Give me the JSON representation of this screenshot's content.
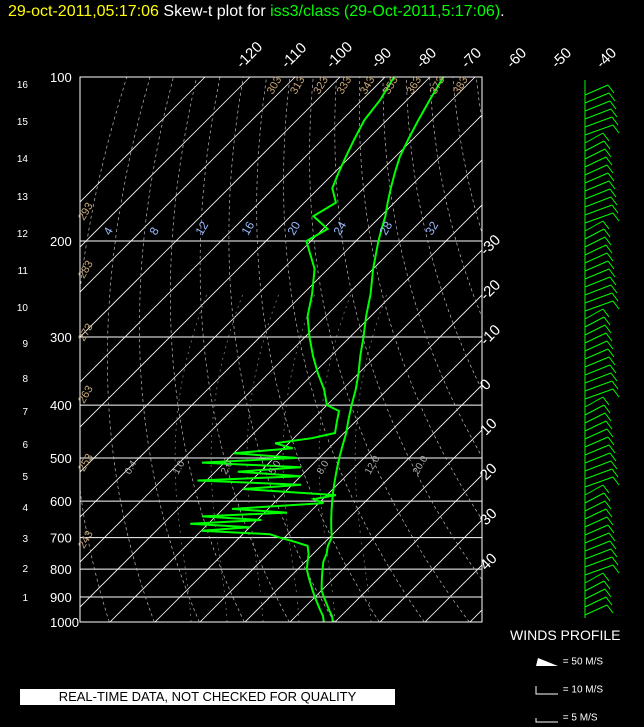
{
  "header": {
    "timestamp": "29-oct-2011,05:17:06",
    "plot_label": "Skew-t plot for",
    "station": "iss3/class",
    "station_time": "(29-Oct-2011,5:17:06)",
    "period": "."
  },
  "winds": {
    "label": "WINDS PROFILE",
    "legend": [
      "= 50 M/S",
      "= 10 M/S",
      "= 5 M/S"
    ]
  },
  "quality_note": "REAL-TIME DATA, NOT CHECKED FOR QUALITY",
  "colors": {
    "temperature": "#00ff00",
    "dewpoint": "#00ff00",
    "grid": "#ffffff",
    "mixing_ratio": "#9ab8ff",
    "dry_adiabat": "#c8a878",
    "background": "#000000"
  },
  "chart_data": {
    "type": "line",
    "subtype": "skew-t log-p",
    "y_axis": {
      "label": "pressure (hPa)",
      "scale": "log",
      "range": [
        1000,
        100
      ],
      "ticks": [
        100,
        200,
        300,
        400,
        500,
        600,
        700,
        800,
        900,
        1000
      ]
    },
    "height_axis": {
      "label": "height (km)",
      "ticks": [
        1,
        2,
        3,
        4,
        5,
        6,
        7,
        8,
        9,
        10,
        11,
        12,
        13,
        14,
        15,
        16
      ]
    },
    "temperature_labels": [
      "-120",
      "-110",
      "-100",
      "-90",
      "-80",
      "-70",
      "-60",
      "-50",
      "-40",
      "-30",
      "-20",
      "-10",
      "0",
      "10",
      "20",
      "30",
      "40"
    ],
    "isotherms_top": [
      -120,
      -110,
      -100,
      -90,
      -80,
      -70,
      -60,
      -50,
      -40
    ],
    "isotherms_right": [
      -30,
      -20,
      -10,
      0,
      10,
      20,
      30,
      40
    ],
    "dry_adiabat_labels": [
      "243",
      "253",
      "263",
      "273",
      "283",
      "293",
      "303",
      "313",
      "323",
      "333",
      "343",
      "353",
      "363",
      "373",
      "383",
      "393",
      "403",
      "413",
      "423",
      "433"
    ],
    "mixing_ratio_labels": [
      "4",
      "8",
      "12",
      "16",
      "20",
      "24",
      "28",
      "32"
    ],
    "small_mixing_labels": [
      "0.4",
      "1.0",
      "2.0",
      "5.0",
      "8.0",
      "12.0",
      "20.0"
    ],
    "series": [
      {
        "name": "temperature",
        "points": [
          [
            1000,
            19.5
          ],
          [
            975,
            18.0
          ],
          [
            950,
            16.0
          ],
          [
            925,
            14.0
          ],
          [
            900,
            12.0
          ],
          [
            875,
            10.0
          ],
          [
            850,
            8.5
          ],
          [
            825,
            7.0
          ],
          [
            800,
            5.5
          ],
          [
            775,
            4.0
          ],
          [
            750,
            3.0
          ],
          [
            725,
            1.5
          ],
          [
            700,
            0.5
          ],
          [
            675,
            -1.5
          ],
          [
            650,
            -3.5
          ],
          [
            625,
            -5.5
          ],
          [
            600,
            -7.5
          ],
          [
            575,
            -9.5
          ],
          [
            550,
            -11.5
          ],
          [
            525,
            -13.5
          ],
          [
            500,
            -15.5
          ],
          [
            475,
            -17.5
          ],
          [
            450,
            -19.5
          ],
          [
            425,
            -22.0
          ],
          [
            400,
            -24.5
          ],
          [
            375,
            -27.0
          ],
          [
            350,
            -30.0
          ],
          [
            325,
            -33.5
          ],
          [
            300,
            -37.0
          ],
          [
            275,
            -41.0
          ],
          [
            250,
            -45.0
          ],
          [
            225,
            -50.0
          ],
          [
            200,
            -55.0
          ],
          [
            190,
            -57.0
          ],
          [
            180,
            -59.0
          ],
          [
            170,
            -61.5
          ],
          [
            160,
            -64.0
          ],
          [
            150,
            -66.5
          ],
          [
            140,
            -69.0
          ],
          [
            130,
            -71.0
          ],
          [
            120,
            -73.0
          ],
          [
            110,
            -75.0
          ],
          [
            100,
            -77.0
          ]
        ]
      },
      {
        "name": "dewpoint",
        "points": [
          [
            1000,
            17.5
          ],
          [
            975,
            16.0
          ],
          [
            950,
            14.0
          ],
          [
            925,
            12.0
          ],
          [
            900,
            10.0
          ],
          [
            875,
            8.0
          ],
          [
            850,
            6.0
          ],
          [
            825,
            4.0
          ],
          [
            800,
            2.0
          ],
          [
            775,
            0.5
          ],
          [
            750,
            -1.0
          ],
          [
            725,
            -3.0
          ],
          [
            715,
            -6.0
          ],
          [
            700,
            -11.0
          ],
          [
            690,
            -14.0
          ],
          [
            680,
            -30.0
          ],
          [
            670,
            -20.0
          ],
          [
            660,
            -34.0
          ],
          [
            650,
            -19.0
          ],
          [
            640,
            -33.0
          ],
          [
            630,
            -15.0
          ],
          [
            620,
            -28.0
          ],
          [
            605,
            -9.0
          ],
          [
            595,
            -12.0
          ],
          [
            585,
            -8.0
          ],
          [
            570,
            -30.0
          ],
          [
            560,
            -18.0
          ],
          [
            550,
            -42.0
          ],
          [
            540,
            -20.0
          ],
          [
            530,
            -35.0
          ],
          [
            520,
            -22.0
          ],
          [
            510,
            -45.0
          ],
          [
            500,
            -25.0
          ],
          [
            490,
            -40.0
          ],
          [
            480,
            -28.0
          ],
          [
            470,
            -33.0
          ],
          [
            460,
            -26.0
          ],
          [
            450,
            -22.0
          ],
          [
            430,
            -24.0
          ],
          [
            410,
            -26.0
          ],
          [
            400,
            -30.0
          ],
          [
            375,
            -34.0
          ],
          [
            350,
            -39.0
          ],
          [
            325,
            -44.0
          ],
          [
            300,
            -49.0
          ],
          [
            275,
            -54.0
          ],
          [
            250,
            -58.0
          ],
          [
            225,
            -63.0
          ],
          [
            200,
            -71.0
          ],
          [
            190,
            -69.0
          ],
          [
            180,
            -75.0
          ],
          [
            170,
            -73.0
          ],
          [
            160,
            -77.0
          ],
          [
            150,
            -79.0
          ],
          [
            140,
            -81.0
          ],
          [
            130,
            -83.0
          ],
          [
            120,
            -85.0
          ],
          [
            110,
            -86.0
          ],
          [
            100,
            -88.0
          ]
        ]
      }
    ],
    "grid": true
  }
}
